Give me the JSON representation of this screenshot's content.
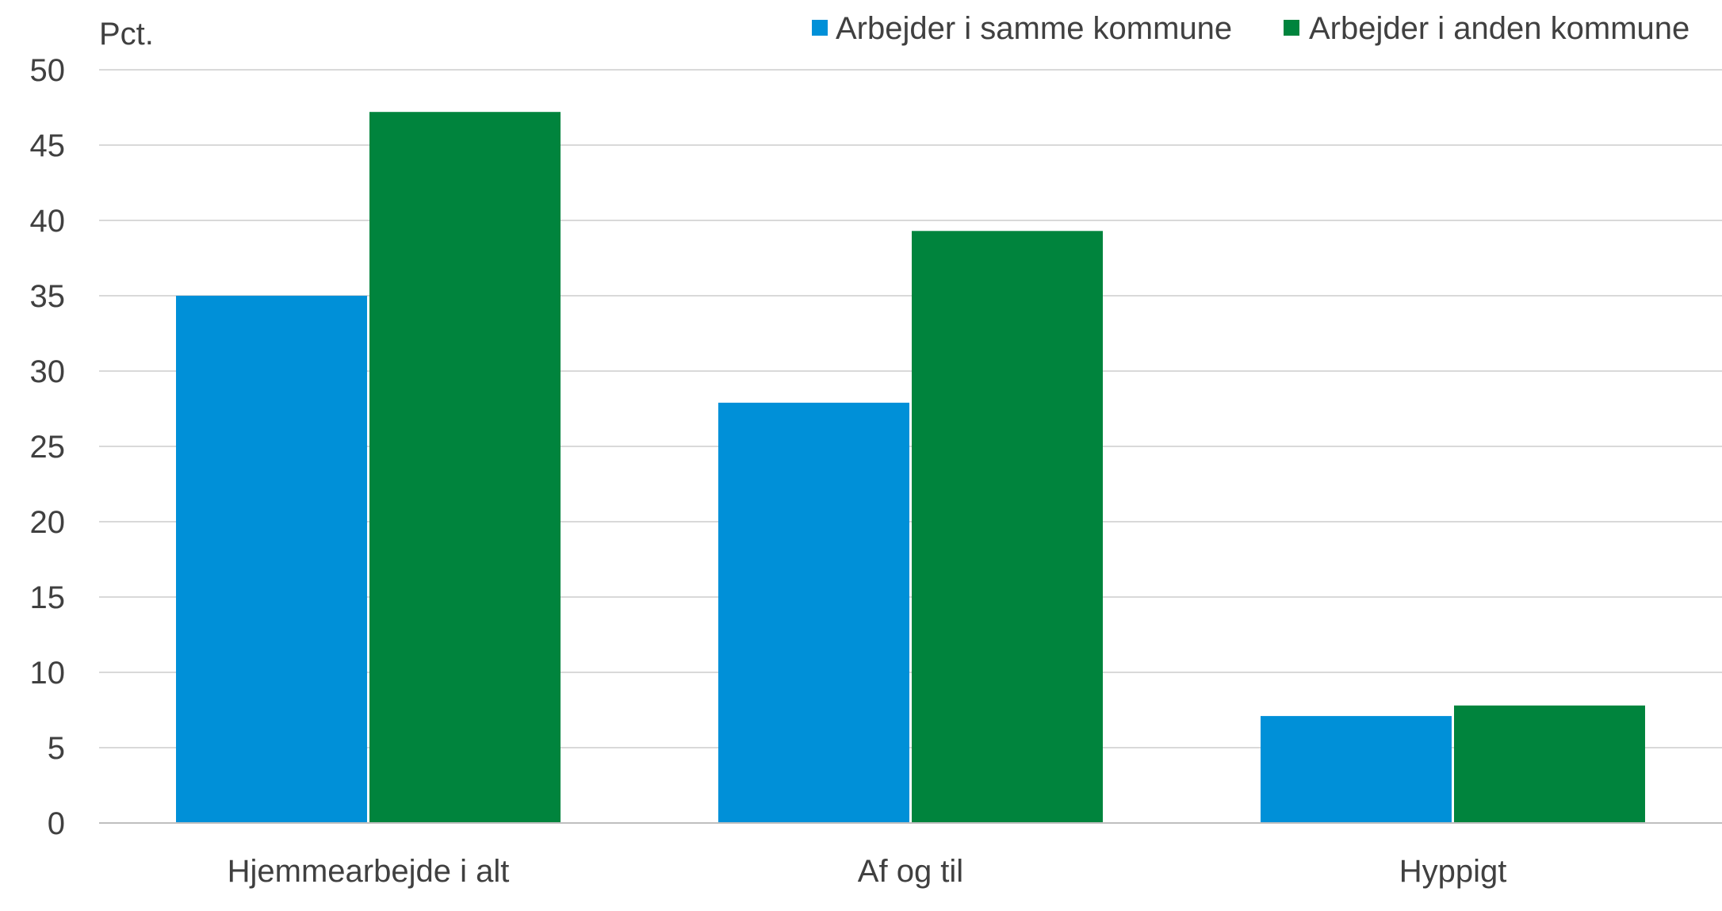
{
  "chart_data": {
    "type": "bar",
    "categories": [
      "Hjemmearbejde i alt",
      "Af og til",
      "Hyppigt"
    ],
    "series": [
      {
        "name": "Arbejder i samme kommune",
        "color": "#0090d8",
        "values": [
          35.0,
          27.9,
          7.1
        ]
      },
      {
        "name": "Arbejder i anden kommune",
        "color": "#00843d",
        "values": [
          47.2,
          39.3,
          7.8
        ]
      }
    ],
    "title": "",
    "xlabel": "",
    "ylabel": "Pct.",
    "ylim": [
      0,
      50
    ],
    "yticks": [
      "0",
      "5",
      "10",
      "15",
      "20",
      "25",
      "30",
      "35",
      "40",
      "45",
      "50"
    ],
    "grid": true,
    "legend_position": "top-right"
  }
}
